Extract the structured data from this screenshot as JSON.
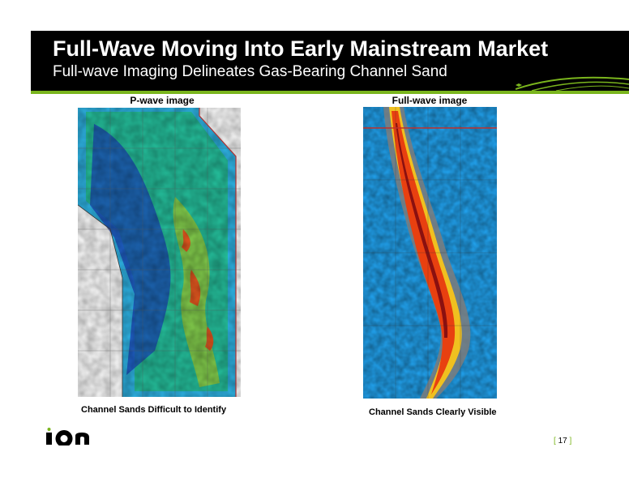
{
  "slide": {
    "title": "Full-Wave Moving Into Early Mainstream Market",
    "subtitle": "Full-wave Imaging Delineates Gas-Bearing Channel Sand",
    "accent_color": "#7ab51d",
    "header_color": "#000000"
  },
  "panels": [
    {
      "title": "P-wave image",
      "caption": "Channel Sands Difficult to Identify",
      "image": "p-wave-seismic-amplitude-map"
    },
    {
      "title": "Full-wave image",
      "caption": "Channel Sands Clearly Visible",
      "image": "full-wave-seismic-amplitude-map"
    }
  ],
  "footer": {
    "logo_text": "ION",
    "page_open": "[",
    "page_number": "17",
    "page_close": "]"
  }
}
